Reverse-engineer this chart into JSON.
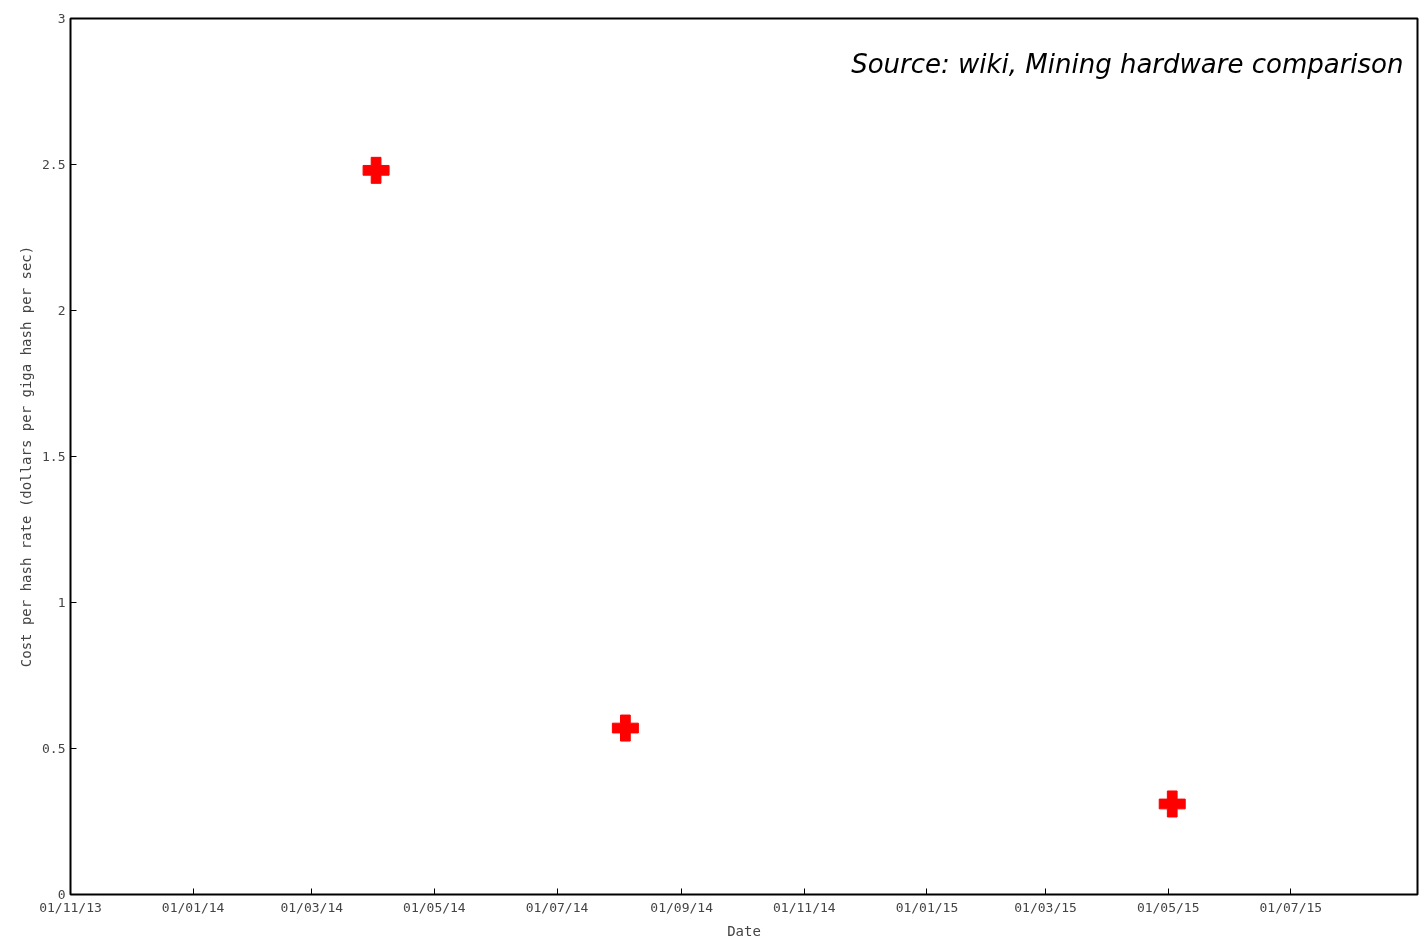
{
  "chart_data": {
    "type": "scatter",
    "xlabel": "Date",
    "ylabel": "Cost per hash rate (dollars per giga hash per sec)",
    "annotations": [
      "Source: wiki, Mining hardware comparison"
    ],
    "x": [
      "2014-04-02",
      "2014-08-04",
      "2015-05-03"
    ],
    "series": [
      {
        "color": "#ff0000",
        "values": [
          2.48,
          0.57,
          0.31
        ]
      }
    ],
    "marker": "cross",
    "xlim": [
      "2013-11-01",
      "2015-09-02"
    ],
    "xticks": [
      {
        "value": "2013-11-01",
        "label": "01/11/13"
      },
      {
        "value": "2014-01-01",
        "label": "01/01/14"
      },
      {
        "value": "2014-03-01",
        "label": "01/03/14"
      },
      {
        "value": "2014-05-01",
        "label": "01/05/14"
      },
      {
        "value": "2014-07-01",
        "label": "01/07/14"
      },
      {
        "value": "2014-09-01",
        "label": "01/09/14"
      },
      {
        "value": "2014-11-01",
        "label": "01/11/14"
      },
      {
        "value": "2015-01-01",
        "label": "01/01/15"
      },
      {
        "value": "2015-03-01",
        "label": "01/03/15"
      },
      {
        "value": "2015-05-01",
        "label": "01/05/15"
      },
      {
        "value": "2015-07-01",
        "label": "01/07/15"
      }
    ],
    "ylim": [
      0,
      3
    ],
    "yticks": [
      0,
      0.5,
      1,
      1.5,
      2,
      2.5,
      3
    ],
    "grid": false
  }
}
